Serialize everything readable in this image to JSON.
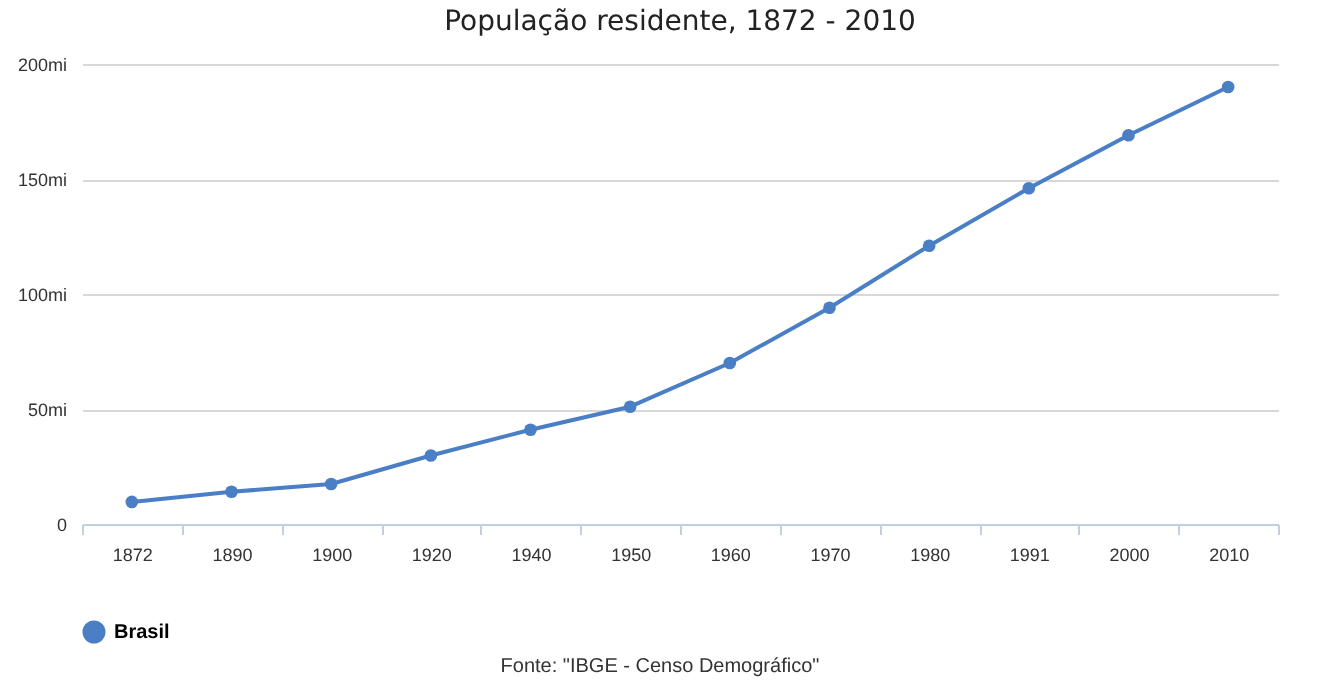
{
  "chart_data": {
    "type": "line",
    "title": "População residente, 1872 - 2010",
    "categories": [
      "1872",
      "1890",
      "1900",
      "1920",
      "1940",
      "1950",
      "1960",
      "1970",
      "1980",
      "1991",
      "2000",
      "2010"
    ],
    "series": [
      {
        "name": "Brasil",
        "color": "#4a7fc6",
        "values": [
          9.6,
          14,
          17.4,
          29.8,
          41,
          51,
          70,
          94,
          121,
          146,
          169,
          190
        ]
      }
    ],
    "ylim": [
      0,
      200
    ],
    "yticks": [
      {
        "value": 0,
        "label": "0"
      },
      {
        "value": 50,
        "label": "50mi"
      },
      {
        "value": 100,
        "label": "100mi"
      },
      {
        "value": 150,
        "label": "150mi"
      },
      {
        "value": 200,
        "label": "200mi"
      }
    ],
    "grid": "y",
    "legend": "bottom",
    "marker": "circle",
    "annotations": [
      "Fonte: \"IBGE - Censo Demográfico\""
    ]
  }
}
